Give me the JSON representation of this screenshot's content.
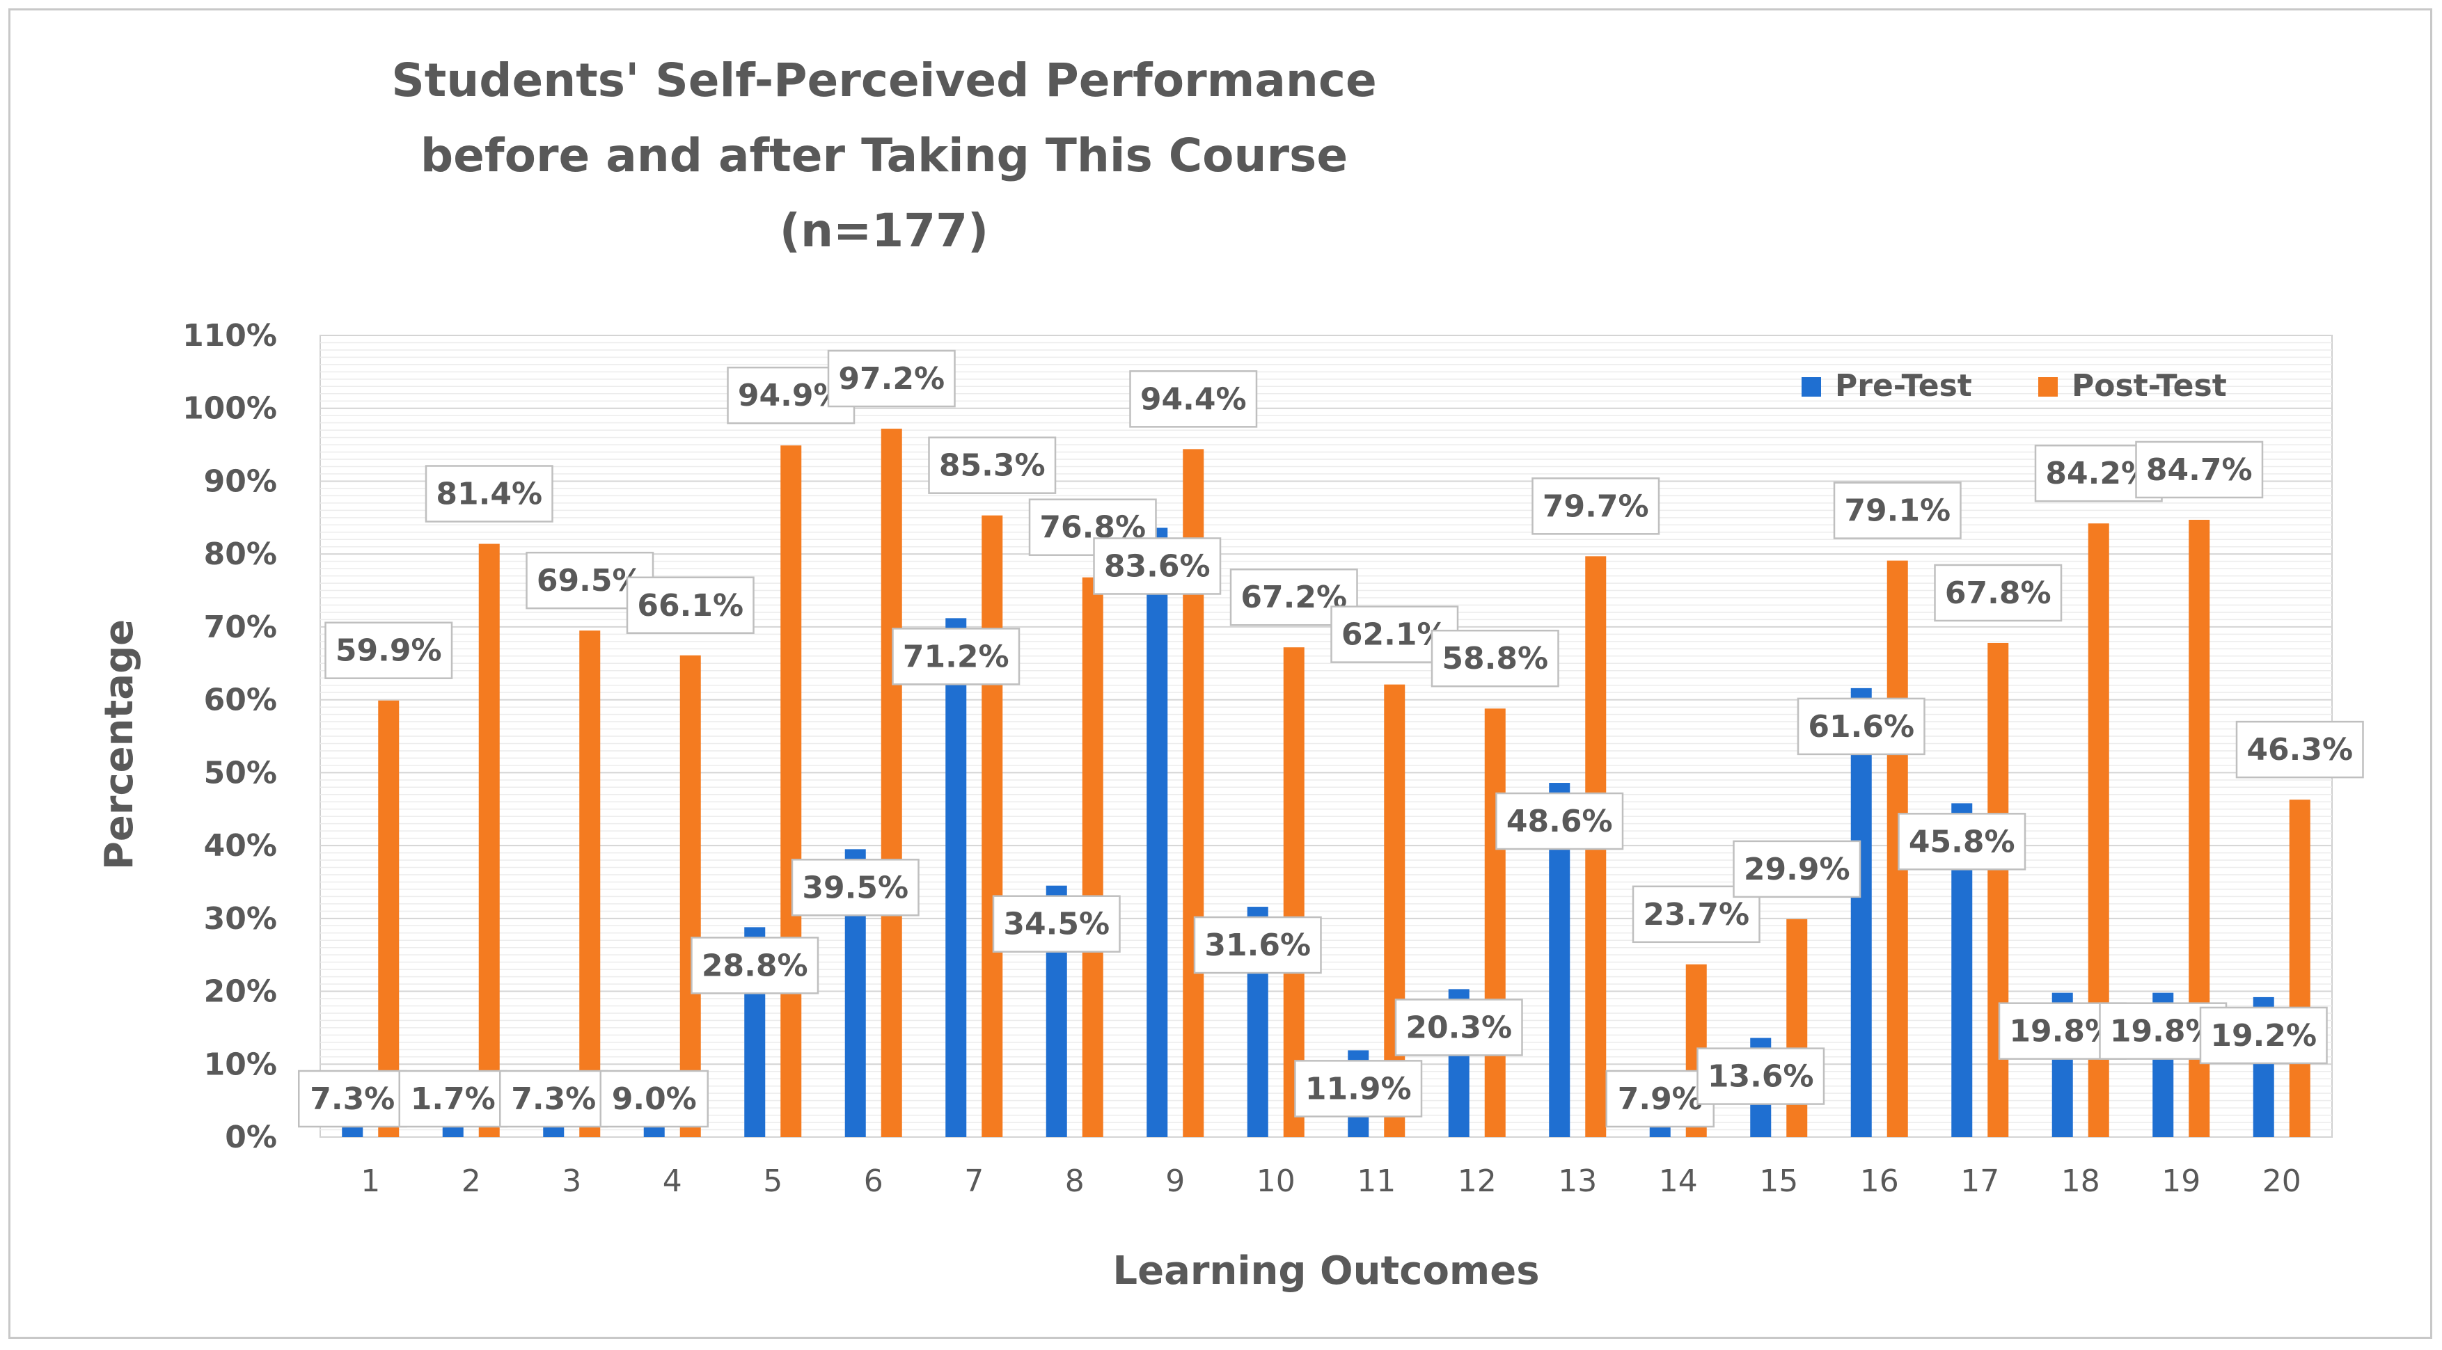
{
  "chart_data": {
    "type": "bar",
    "title_lines": [
      "Students' Self-Perceived Performance",
      "before and after Taking This Course",
      "(n=177)"
    ],
    "xlabel": "Learning Outcomes",
    "ylabel": "Percentage",
    "categories": [
      "1",
      "2",
      "3",
      "4",
      "5",
      "6",
      "7",
      "8",
      "9",
      "10",
      "11",
      "12",
      "13",
      "14",
      "15",
      "16",
      "17",
      "18",
      "19",
      "20"
    ],
    "yticks": [
      "0%",
      "10%",
      "20%",
      "30%",
      "40%",
      "50%",
      "60%",
      "70%",
      "80%",
      "90%",
      "100%",
      "110%"
    ],
    "ylim": [
      0,
      110
    ],
    "legend_position": "top-right",
    "grid": true,
    "series": [
      {
        "name": "Pre-Test",
        "color": "#1f6fd1",
        "values": [
          7.3,
          1.7,
          7.3,
          9.0,
          28.8,
          39.5,
          71.2,
          34.5,
          83.6,
          31.6,
          11.9,
          20.3,
          48.6,
          7.9,
          13.6,
          61.6,
          45.8,
          19.8,
          19.8,
          19.2
        ],
        "labels": [
          "7.3%",
          "1.7%",
          "7.3%",
          "9.0%",
          "28.8%",
          "39.5%",
          "71.2%",
          "34.5%",
          "83.6%",
          "31.6%",
          "11.9%",
          "20.3%",
          "48.6%",
          "7.9%",
          "13.6%",
          "61.6%",
          "45.8%",
          "19.8%",
          "19.8%",
          "19.2%"
        ]
      },
      {
        "name": "Post-Test",
        "color": "#f47b20",
        "values": [
          59.9,
          81.4,
          69.5,
          66.1,
          94.9,
          97.2,
          85.3,
          76.8,
          94.4,
          67.2,
          62.1,
          58.8,
          79.7,
          23.7,
          29.9,
          79.1,
          67.8,
          84.2,
          84.7,
          46.3
        ],
        "labels": [
          "59.9%",
          "81.4%",
          "69.5%",
          "66.1%",
          "94.9%",
          "97.2%",
          "85.3%",
          "76.8%",
          "94.4%",
          "67.2%",
          "62.1%",
          "58.8%",
          "79.7%",
          "23.7%",
          "29.9%",
          "79.1%",
          "67.8%",
          "84.2%",
          "84.7%",
          "46.3%"
        ]
      }
    ]
  }
}
